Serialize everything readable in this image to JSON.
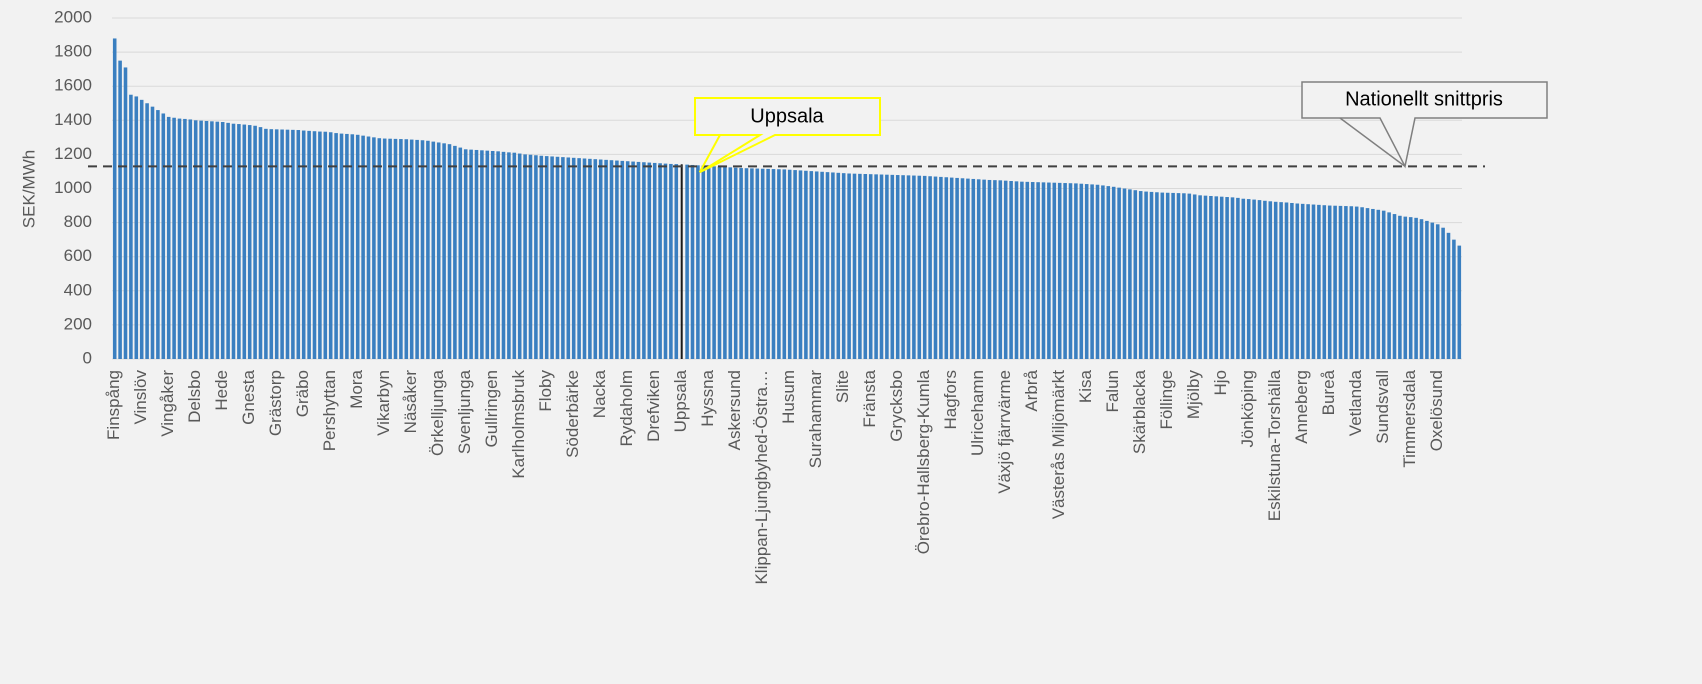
{
  "chart_data": {
    "type": "bar",
    "y_label": "SEK/MWh",
    "ylim": [
      0,
      2000
    ],
    "yticks": [
      0,
      200,
      400,
      600,
      800,
      1000,
      1200,
      1400,
      1600,
      1800,
      2000
    ],
    "grid": true,
    "color": "#3a7fc0",
    "highlight_color": "#1a1a1a",
    "reference_line": {
      "value": 1130,
      "label": "Nationellt snittpris",
      "color": "#404040"
    },
    "annotations": [
      {
        "text": "Uppsala",
        "color": "#ffff00"
      }
    ],
    "categories": [
      "Finspång",
      null,
      null,
      null,
      null,
      "Vinslöv",
      null,
      null,
      null,
      null,
      "Vingåker",
      null,
      null,
      null,
      null,
      "Delsbo",
      null,
      null,
      null,
      null,
      "Hede",
      null,
      null,
      null,
      null,
      "Gnesta",
      null,
      null,
      null,
      null,
      "Grästorp",
      null,
      null,
      null,
      null,
      "Gräbo",
      null,
      null,
      null,
      null,
      "Pershyttan",
      null,
      null,
      null,
      null,
      "Mora",
      null,
      null,
      null,
      null,
      "Vikarbyn",
      null,
      null,
      null,
      null,
      "Näsåker",
      null,
      null,
      null,
      null,
      "Örkelljunga",
      null,
      null,
      null,
      null,
      "Svenljunga",
      null,
      null,
      null,
      null,
      "Gullringen",
      null,
      null,
      null,
      null,
      "Karlholmsbruk",
      null,
      null,
      null,
      null,
      "Floby",
      null,
      null,
      null,
      null,
      "Söderbärke",
      null,
      null,
      null,
      null,
      "Nacka",
      null,
      null,
      null,
      null,
      "Rydaholm",
      null,
      null,
      null,
      null,
      "Drefviken",
      null,
      null,
      null,
      null,
      "Uppsala",
      null,
      null,
      null,
      null,
      "Hyssna",
      null,
      null,
      null,
      null,
      "Askersund",
      null,
      null,
      null,
      null,
      "Klippan-Ljungbyhed-Östra…",
      null,
      null,
      null,
      null,
      "Husum",
      null,
      null,
      null,
      null,
      "Surahammar",
      null,
      null,
      null,
      null,
      "Slite",
      null,
      null,
      null,
      null,
      "Fränsta",
      null,
      null,
      null,
      null,
      "Grycksbo",
      null,
      null,
      null,
      null,
      "Örebro-Hallsberg-Kumla",
      null,
      null,
      null,
      null,
      "Hagfors",
      null,
      null,
      null,
      null,
      "Ulricehamn",
      null,
      null,
      null,
      null,
      "Växjö fjärrvärme",
      null,
      null,
      null,
      null,
      "Arbrå",
      null,
      null,
      null,
      null,
      "Västerås Miljömärkt",
      null,
      null,
      null,
      null,
      "Kisa",
      null,
      null,
      null,
      null,
      "Falun",
      null,
      null,
      null,
      null,
      "Skärblacka",
      null,
      null,
      null,
      null,
      "Föllinge",
      null,
      null,
      null,
      null,
      "Mjölby",
      null,
      null,
      null,
      null,
      "Hjo",
      null,
      null,
      null,
      null,
      "Jönköping",
      null,
      null,
      null,
      null,
      "Eskilstuna-Torshälla",
      null,
      null,
      null,
      null,
      "Anneberg",
      null,
      null,
      null,
      null,
      "Bureå",
      null,
      null,
      null,
      null,
      "Vetlanda",
      null,
      null,
      null,
      null,
      "Sundsvall",
      null,
      null,
      null,
      null,
      "Timmersdala",
      null,
      null,
      null,
      null,
      "Oxelösund",
      null,
      null,
      null,
      null
    ],
    "values": [
      1880,
      1750,
      1710,
      1550,
      1540,
      1520,
      1500,
      1480,
      1460,
      1440,
      1420,
      1415,
      1410,
      1408,
      1405,
      1400,
      1398,
      1396,
      1394,
      1392,
      1390,
      1385,
      1380,
      1378,
      1375,
      1372,
      1368,
      1360,
      1350,
      1348,
      1347,
      1346,
      1345,
      1344,
      1343,
      1340,
      1338,
      1336,
      1334,
      1333,
      1330,
      1325,
      1322,
      1320,
      1318,
      1315,
      1310,
      1305,
      1300,
      1295,
      1293,
      1292,
      1291,
      1290,
      1289,
      1287,
      1285,
      1283,
      1280,
      1275,
      1270,
      1265,
      1260,
      1250,
      1240,
      1230,
      1228,
      1226,
      1224,
      1222,
      1220,
      1218,
      1215,
      1212,
      1210,
      1205,
      1200,
      1198,
      1195,
      1192,
      1190,
      1188,
      1186,
      1184,
      1182,
      1180,
      1178,
      1176,
      1174,
      1172,
      1170,
      1168,
      1166,
      1164,
      1162,
      1160,
      1158,
      1156,
      1154,
      1152,
      1150,
      1148,
      1146,
      1144,
      1143,
      1142,
      1140,
      1138,
      1136,
      1134,
      1132,
      1130,
      1128,
      1126,
      1124,
      1122,
      1120,
      1119,
      1118,
      1117,
      1116,
      1115,
      1114,
      1113,
      1112,
      1110,
      1108,
      1106,
      1104,
      1102,
      1100,
      1098,
      1096,
      1094,
      1092,
      1090,
      1088,
      1087,
      1086,
      1085,
      1084,
      1083,
      1082,
      1081,
      1080,
      1079,
      1078,
      1077,
      1076,
      1075,
      1074,
      1072,
      1070,
      1068,
      1066,
      1064,
      1062,
      1060,
      1058,
      1056,
      1054,
      1052,
      1050,
      1049,
      1048,
      1046,
      1044,
      1042,
      1040,
      1039,
      1038,
      1037,
      1036,
      1035,
      1034,
      1033,
      1032,
      1031,
      1030,
      1028,
      1026,
      1024,
      1022,
      1018,
      1014,
      1010,
      1005,
      1000,
      995,
      990,
      985,
      982,
      980,
      978,
      976,
      975,
      974,
      973,
      972,
      970,
      965,
      960,
      958,
      956,
      954,
      952,
      950,
      948,
      945,
      940,
      938,
      935,
      932,
      928,
      925,
      922,
      920,
      918,
      915,
      912,
      910,
      908,
      906,
      904,
      902,
      900,
      899,
      898,
      897,
      896,
      894,
      890,
      885,
      880,
      875,
      870,
      860,
      850,
      840,
      835,
      832,
      828,
      820,
      810,
      800,
      790,
      770,
      740,
      700,
      665
    ]
  }
}
